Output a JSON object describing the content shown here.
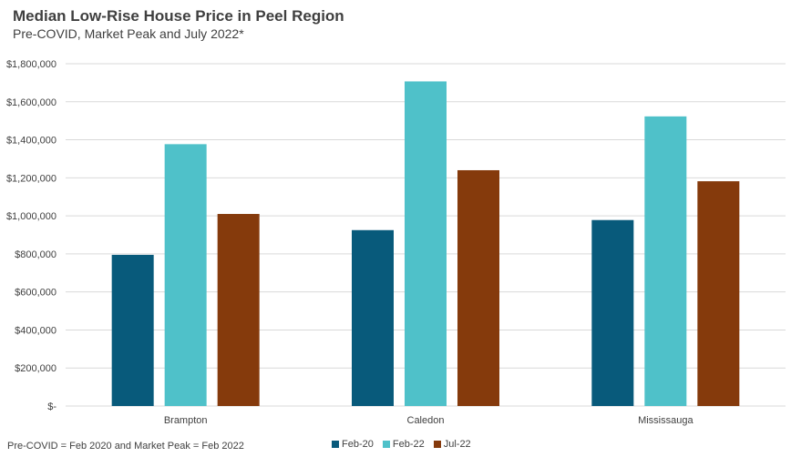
{
  "chart_data": {
    "type": "bar",
    "title": "Median Low-Rise House Price in Peel Region",
    "subtitle": "Pre-COVID, Market Peak and July 2022*",
    "categories": [
      "Brampton",
      "Caledon",
      "Mississauga"
    ],
    "series": [
      {
        "name": "Feb-20",
        "color": "#085a7b",
        "values": [
          795000,
          925000,
          978000
        ]
      },
      {
        "name": "Feb-22",
        "color": "#4fc1c9",
        "values": [
          1377000,
          1707000,
          1523000
        ]
      },
      {
        "name": "Jul-22",
        "color": "#853a0c",
        "values": [
          1010000,
          1240000,
          1182000
        ]
      }
    ],
    "ylim": [
      0,
      1800000
    ],
    "yticks": [
      0,
      200000,
      400000,
      600000,
      800000,
      1000000,
      1200000,
      1400000,
      1600000,
      1800000
    ],
    "ytick_labels": [
      "$-",
      "$200,000",
      "$400,000",
      "$600,000",
      "$800,000",
      "$1,000,000",
      "$1,200,000",
      "$1,400,000",
      "$1,600,000",
      "$1,800,000"
    ],
    "grid": true,
    "legend_position": "bottom",
    "footnote": "Pre-COVID = Feb 2020 and Market Peak = Feb 2022"
  }
}
